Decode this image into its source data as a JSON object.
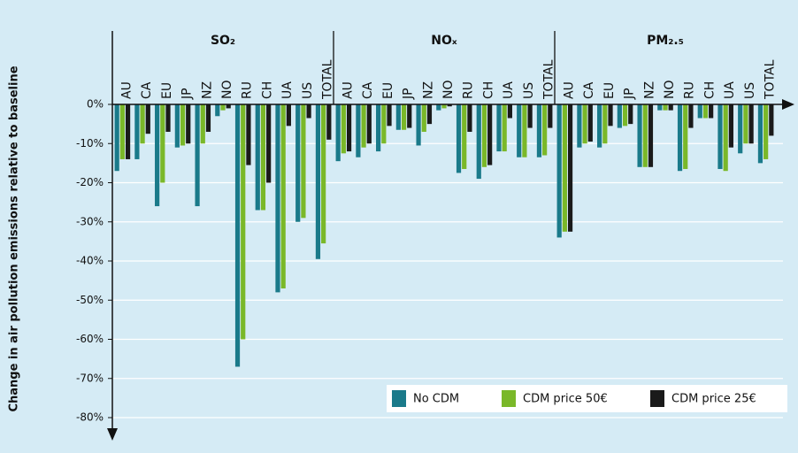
{
  "chart_data": {
    "type": "bar",
    "y_label": "Change in air pollution emissions relative to baseline",
    "categories": [
      "AU",
      "CA",
      "EU",
      "JP",
      "NZ",
      "NO",
      "RU",
      "CH",
      "UA",
      "US",
      "TOTAL"
    ],
    "series": [
      {
        "name": "No CDM",
        "color": "#1a7a8a"
      },
      {
        "name": "CDM price 50€",
        "color": "#7ab829"
      },
      {
        "name": "CDM price 25€",
        "color": "#1a1a1a"
      }
    ],
    "panels": [
      {
        "title": "SO₂",
        "values": [
          [
            -17,
            -14,
            -26,
            -11,
            -26,
            -3,
            -67,
            -27,
            -48,
            -30,
            -39.5
          ],
          [
            -14,
            -10,
            -20,
            -10.5,
            -10,
            -1.5,
            -60,
            -27,
            -47,
            -29,
            -35.5
          ],
          [
            -14,
            -7.5,
            -7,
            -10,
            -7,
            -1,
            -15.5,
            -20,
            -5.5,
            -3.5,
            -9
          ]
        ]
      },
      {
        "title": "NOₓ",
        "values": [
          [
            -14.5,
            -13.5,
            -12,
            -6.5,
            -10.5,
            -1.5,
            -17.5,
            -19,
            -12,
            -13.5,
            -13.5
          ],
          [
            -12.5,
            -11,
            -10,
            -6.5,
            -7,
            -1,
            -16.5,
            -16,
            -12,
            -13.5,
            -13
          ],
          [
            -12,
            -10,
            -5.5,
            -6,
            -5,
            -0.5,
            -7,
            -15.5,
            -3.5,
            -6,
            -6
          ]
        ]
      },
      {
        "title": "PM₂.₅",
        "values": [
          [
            -34,
            -11,
            -11,
            -6,
            -16,
            -1.5,
            -17,
            -3.5,
            -16.5,
            -12.5,
            -15
          ],
          [
            -32.5,
            -10,
            -10,
            -5.5,
            -16,
            -1.5,
            -16.5,
            -3.5,
            -17,
            -10,
            -14
          ],
          [
            -32.5,
            -9.5,
            -5.5,
            -5,
            -16,
            -1.5,
            -6,
            -3.5,
            -11,
            -10,
            -8
          ]
        ]
      }
    ],
    "ylim": [
      0,
      -80
    ],
    "yticks": [
      {
        "value": 0,
        "label": "0%"
      },
      {
        "value": -10,
        "label": "-10%"
      },
      {
        "value": -20,
        "label": "-20%"
      },
      {
        "value": -30,
        "label": "-30%"
      },
      {
        "value": -40,
        "label": "-40%"
      },
      {
        "value": -50,
        "label": "-50%"
      },
      {
        "value": -60,
        "label": "-60%"
      },
      {
        "value": -70,
        "label": "-70%"
      },
      {
        "value": -80,
        "label": "-80%"
      }
    ],
    "grid": true,
    "legend": "lower right"
  }
}
